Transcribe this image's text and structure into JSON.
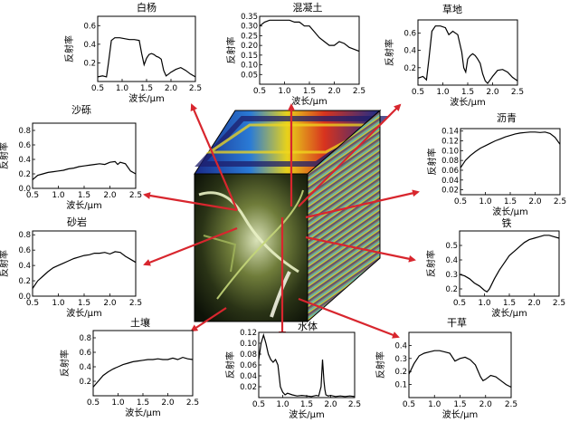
{
  "figure": {
    "colors": {
      "arrow": "#d8262e",
      "curve": "#000000",
      "cube_edge": "#000000",
      "page_bg": "#ffffff"
    },
    "cube_top_art": "blue-red-yellow hyperspectral layers",
    "cube_front_art": "dark satellite image with bright yellow-green river/urban texture"
  },
  "chart_data": [
    {
      "id": "p_baiyang",
      "type": "line",
      "title": "白杨",
      "xlabel": "波长/μm",
      "ylabel": "反射率",
      "xlim": [
        0.5,
        2.5
      ],
      "ylim": [
        0,
        0.7
      ],
      "xticks": [
        "0.5",
        "1.0",
        "1.5",
        "2.0",
        "2.5"
      ],
      "yticks": [
        "0.2",
        "0.4",
        "0.6"
      ],
      "ytick_values": [
        0.2,
        0.4,
        0.6
      ],
      "x": [
        0.5,
        0.6,
        0.68,
        0.72,
        0.78,
        0.85,
        0.95,
        1.05,
        1.15,
        1.25,
        1.35,
        1.4,
        1.45,
        1.5,
        1.55,
        1.6,
        1.65,
        1.7,
        1.75,
        1.8,
        1.85,
        1.9,
        1.95,
        2.0,
        2.1,
        2.2,
        2.3,
        2.4,
        2.5
      ],
      "y": [
        0.05,
        0.06,
        0.05,
        0.2,
        0.44,
        0.47,
        0.47,
        0.46,
        0.45,
        0.45,
        0.44,
        0.3,
        0.18,
        0.25,
        0.29,
        0.3,
        0.29,
        0.27,
        0.26,
        0.24,
        0.12,
        0.06,
        0.08,
        0.1,
        0.13,
        0.15,
        0.12,
        0.08,
        0.05
      ]
    },
    {
      "id": "p_hunningtu",
      "type": "line",
      "title": "混凝土",
      "xlabel": "波长/μm",
      "ylabel": "反射率",
      "xlim": [
        0.5,
        2.5
      ],
      "ylim": [
        0,
        0.35
      ],
      "xticks": [
        "0.5",
        "1.0",
        "1.5",
        "2.0",
        "2.5"
      ],
      "yticks": [
        "0.35",
        "0.30",
        "0.25",
        "0.20",
        "0.15",
        "0.10",
        "0.05"
      ],
      "ytick_values": [
        0.35,
        0.3,
        0.25,
        0.2,
        0.15,
        0.1,
        0.05
      ],
      "x": [
        0.5,
        0.6,
        0.7,
        0.8,
        0.9,
        1.0,
        1.1,
        1.2,
        1.3,
        1.4,
        1.5,
        1.6,
        1.7,
        1.8,
        1.9,
        2.0,
        2.1,
        2.2,
        2.3,
        2.4,
        2.5
      ],
      "y": [
        0.3,
        0.32,
        0.33,
        0.33,
        0.33,
        0.33,
        0.33,
        0.32,
        0.32,
        0.3,
        0.3,
        0.27,
        0.24,
        0.22,
        0.2,
        0.2,
        0.22,
        0.21,
        0.19,
        0.18,
        0.17
      ]
    },
    {
      "id": "p_caodi",
      "type": "line",
      "title": "草地",
      "xlabel": "波长/μm",
      "ylabel": "反射率",
      "xlim": [
        0.5,
        2.5
      ],
      "ylim": [
        0,
        0.75
      ],
      "xticks": [
        "0.5",
        "1.0",
        "1.5",
        "2.0",
        "2.5"
      ],
      "yticks": [
        "0.2",
        "0.4",
        "0.6"
      ],
      "ytick_values": [
        0.2,
        0.4,
        0.6
      ],
      "x": [
        0.5,
        0.6,
        0.67,
        0.72,
        0.78,
        0.85,
        0.95,
        1.05,
        1.12,
        1.2,
        1.3,
        1.38,
        1.42,
        1.46,
        1.5,
        1.55,
        1.6,
        1.65,
        1.7,
        1.75,
        1.8,
        1.85,
        1.9,
        1.95,
        2.0,
        2.1,
        2.2,
        2.3,
        2.4,
        2.5
      ],
      "y": [
        0.08,
        0.1,
        0.06,
        0.3,
        0.62,
        0.68,
        0.68,
        0.66,
        0.58,
        0.62,
        0.58,
        0.38,
        0.2,
        0.15,
        0.3,
        0.34,
        0.36,
        0.34,
        0.3,
        0.25,
        0.13,
        0.05,
        0.02,
        0.06,
        0.1,
        0.17,
        0.18,
        0.15,
        0.09,
        0.05
      ]
    },
    {
      "id": "p_shali",
      "type": "line",
      "title": "沙砾",
      "xlabel": "波长/μm",
      "ylabel": "反射率",
      "xlim": [
        0.5,
        2.5
      ],
      "ylim": [
        0,
        0.9
      ],
      "xticks": [
        "0.5",
        "1.0",
        "1.5",
        "2.0",
        "2.5"
      ],
      "yticks": [
        "0.0",
        "0.2",
        "0.4",
        "0.6",
        "0.8"
      ],
      "ytick_values": [
        0.0,
        0.2,
        0.4,
        0.6,
        0.8
      ],
      "x": [
        0.5,
        0.6,
        0.7,
        0.8,
        0.9,
        1.0,
        1.1,
        1.2,
        1.3,
        1.4,
        1.5,
        1.6,
        1.7,
        1.8,
        1.9,
        2.0,
        2.1,
        2.15,
        2.2,
        2.3,
        2.4,
        2.5
      ],
      "y": [
        0.12,
        0.18,
        0.2,
        0.22,
        0.23,
        0.24,
        0.25,
        0.27,
        0.28,
        0.3,
        0.31,
        0.32,
        0.33,
        0.34,
        0.33,
        0.36,
        0.37,
        0.33,
        0.36,
        0.34,
        0.24,
        0.2
      ]
    },
    {
      "id": "p_shayan",
      "type": "line",
      "title": "砂岩",
      "xlabel": "波长/μm",
      "ylabel": "反射率",
      "xlim": [
        0.5,
        2.5
      ],
      "ylim": [
        0,
        0.85
      ],
      "xticks": [
        "0.5",
        "1.0",
        "1.5",
        "2.0",
        "2.5"
      ],
      "yticks": [
        "0.0",
        "0.2",
        "0.4",
        "0.6",
        "0.8"
      ],
      "ytick_values": [
        0.0,
        0.2,
        0.4,
        0.6,
        0.8
      ],
      "x": [
        0.5,
        0.6,
        0.7,
        0.8,
        0.9,
        1.0,
        1.1,
        1.2,
        1.3,
        1.4,
        1.5,
        1.6,
        1.7,
        1.8,
        1.9,
        2.0,
        2.1,
        2.2,
        2.3,
        2.4,
        2.5
      ],
      "y": [
        0.1,
        0.2,
        0.26,
        0.32,
        0.37,
        0.4,
        0.43,
        0.46,
        0.49,
        0.51,
        0.53,
        0.54,
        0.56,
        0.56,
        0.57,
        0.55,
        0.58,
        0.57,
        0.52,
        0.48,
        0.44
      ]
    },
    {
      "id": "p_turang",
      "type": "line",
      "title": "土壤",
      "xlabel": "波长/μm",
      "ylabel": "反射率",
      "xlim": [
        0.5,
        2.5
      ],
      "ylim": [
        0,
        0.9
      ],
      "xticks": [
        "0.5",
        "1.0",
        "1.5",
        "2.0",
        "2.5"
      ],
      "yticks": [
        "0.2",
        "0.4",
        "0.6",
        "0.8"
      ],
      "ytick_values": [
        0.2,
        0.4,
        0.6,
        0.8
      ],
      "x": [
        0.5,
        0.6,
        0.7,
        0.8,
        0.9,
        1.0,
        1.1,
        1.2,
        1.3,
        1.4,
        1.5,
        1.6,
        1.7,
        1.8,
        1.9,
        2.0,
        2.1,
        2.2,
        2.3,
        2.4,
        2.5
      ],
      "y": [
        0.12,
        0.2,
        0.28,
        0.33,
        0.37,
        0.4,
        0.43,
        0.45,
        0.47,
        0.48,
        0.49,
        0.5,
        0.5,
        0.51,
        0.5,
        0.5,
        0.52,
        0.5,
        0.53,
        0.51,
        0.5
      ]
    },
    {
      "id": "p_shuiti",
      "type": "line",
      "title": "水体",
      "xlabel": "波长/μm",
      "ylabel": "反射率",
      "xlim": [
        0.5,
        2.5
      ],
      "ylim": [
        0,
        0.12
      ],
      "xticks": [
        "0.5",
        "1.0",
        "1.5",
        "2.0",
        "2.5"
      ],
      "yticks": [
        "0.12",
        "0.10",
        "0.08",
        "0.06",
        "0.04",
        "0.02"
      ],
      "ytick_values": [
        0.12,
        0.1,
        0.08,
        0.06,
        0.04,
        0.02
      ],
      "x": [
        0.5,
        0.55,
        0.6,
        0.65,
        0.7,
        0.75,
        0.8,
        0.85,
        0.9,
        0.95,
        1.0,
        1.05,
        1.1,
        1.2,
        1.3,
        1.4,
        1.5,
        1.6,
        1.7,
        1.75,
        1.8,
        1.83,
        1.86,
        1.88,
        1.9,
        1.95,
        2.0,
        2.1,
        2.2,
        2.3,
        2.4,
        2.5
      ],
      "y": [
        0.07,
        0.1,
        0.115,
        0.1,
        0.08,
        0.07,
        0.065,
        0.07,
        0.06,
        0.02,
        0.01,
        0.005,
        0.008,
        0.005,
        0.003,
        0.004,
        0.003,
        0.002,
        0.004,
        0.003,
        0.02,
        0.07,
        0.03,
        0.015,
        0.005,
        0.003,
        0.004,
        0.002,
        0.003,
        0.002,
        0.003,
        0.002
      ]
    },
    {
      "id": "p_liqing",
      "type": "line",
      "title": "沥青",
      "xlabel": "波长/μm",
      "ylabel": "反射率",
      "xlim": [
        0.5,
        2.5
      ],
      "ylim": [
        0.01,
        0.145
      ],
      "xticks": [
        "0.5",
        "1.0",
        "1.5",
        "2.0",
        "2.5"
      ],
      "yticks": [
        "0.14",
        "0.12",
        "0.10",
        "0.08",
        "0.06",
        "0.04",
        "0.02"
      ],
      "ytick_values": [
        0.14,
        0.12,
        0.1,
        0.08,
        0.06,
        0.04,
        0.02
      ],
      "x": [
        0.5,
        0.6,
        0.7,
        0.8,
        0.9,
        1.0,
        1.1,
        1.2,
        1.3,
        1.4,
        1.5,
        1.6,
        1.7,
        1.8,
        1.9,
        2.0,
        2.1,
        2.2,
        2.3,
        2.4,
        2.5
      ],
      "y": [
        0.065,
        0.08,
        0.09,
        0.098,
        0.105,
        0.11,
        0.115,
        0.12,
        0.124,
        0.128,
        0.131,
        0.134,
        0.136,
        0.137,
        0.138,
        0.138,
        0.137,
        0.138,
        0.135,
        0.127,
        0.113
      ]
    },
    {
      "id": "p_tie",
      "type": "line",
      "title": "铁",
      "xlabel": "波长/μm",
      "ylabel": "反射率",
      "xlim": [
        0.5,
        2.5
      ],
      "ylim": [
        0.15,
        0.6
      ],
      "xticks": [
        "0.5",
        "1.0",
        "1.5",
        "2.0",
        "2.5"
      ],
      "yticks": [
        "0.5",
        "0.4",
        "0.3",
        "0.2"
      ],
      "ytick_values": [
        0.5,
        0.4,
        0.3,
        0.2
      ],
      "x": [
        0.5,
        0.6,
        0.7,
        0.8,
        0.9,
        1.0,
        1.05,
        1.1,
        1.2,
        1.3,
        1.4,
        1.5,
        1.6,
        1.7,
        1.8,
        1.9,
        2.0,
        2.1,
        2.2,
        2.3,
        2.4,
        2.5
      ],
      "y": [
        0.3,
        0.29,
        0.27,
        0.24,
        0.22,
        0.19,
        0.18,
        0.2,
        0.27,
        0.33,
        0.38,
        0.43,
        0.46,
        0.49,
        0.52,
        0.54,
        0.55,
        0.56,
        0.57,
        0.57,
        0.56,
        0.55
      ]
    },
    {
      "id": "p_gancao",
      "type": "line",
      "title": "干草",
      "xlabel": "波长/μm",
      "ylabel": "反射率",
      "xlim": [
        0.5,
        2.5
      ],
      "ylim": [
        0,
        0.5
      ],
      "xticks": [
        "0.5",
        "1.0",
        "1.5",
        "2.0",
        "2.5"
      ],
      "yticks": [
        "0.4",
        "0.3",
        "0.2",
        "0.1"
      ],
      "ytick_values": [
        0.4,
        0.3,
        0.2,
        0.1
      ],
      "x": [
        0.5,
        0.6,
        0.7,
        0.8,
        0.9,
        1.0,
        1.1,
        1.2,
        1.3,
        1.4,
        1.5,
        1.6,
        1.7,
        1.8,
        1.9,
        1.95,
        2.0,
        2.1,
        2.2,
        2.3,
        2.4,
        2.5
      ],
      "y": [
        0.18,
        0.26,
        0.32,
        0.34,
        0.35,
        0.36,
        0.36,
        0.35,
        0.34,
        0.28,
        0.3,
        0.31,
        0.29,
        0.25,
        0.16,
        0.13,
        0.14,
        0.17,
        0.16,
        0.13,
        0.1,
        0.08
      ]
    }
  ]
}
